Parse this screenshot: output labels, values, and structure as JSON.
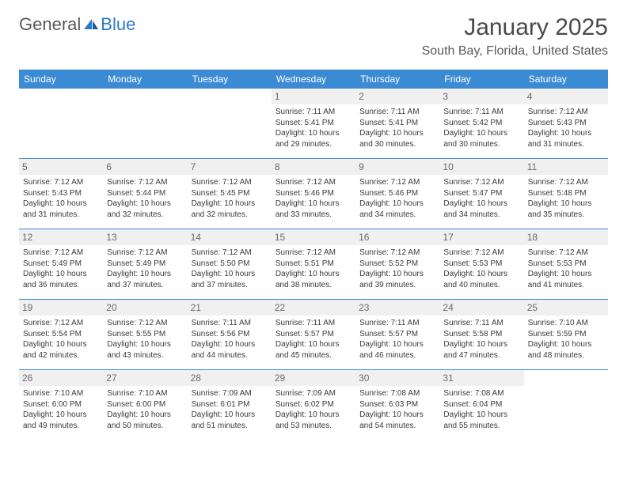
{
  "logo": {
    "text_general": "General",
    "text_blue": "Blue"
  },
  "title": "January 2025",
  "location": "South Bay, Florida, United States",
  "colors": {
    "header_bg": "#3b8bd4",
    "header_text": "#ffffff",
    "day_num_bg": "#f0f0f0",
    "day_num_text": "#6a6a6a",
    "body_text": "#3a3a3a",
    "row_border": "#3b8bd4",
    "logo_gray": "#5a5a5a",
    "logo_blue": "#2d7bc4"
  },
  "day_names": [
    "Sunday",
    "Monday",
    "Tuesday",
    "Wednesday",
    "Thursday",
    "Friday",
    "Saturday"
  ],
  "weeks": [
    [
      {
        "n": "",
        "lines": []
      },
      {
        "n": "",
        "lines": []
      },
      {
        "n": "",
        "lines": []
      },
      {
        "n": "1",
        "lines": [
          "Sunrise: 7:11 AM",
          "Sunset: 5:41 PM",
          "Daylight: 10 hours",
          "and 29 minutes."
        ]
      },
      {
        "n": "2",
        "lines": [
          "Sunrise: 7:11 AM",
          "Sunset: 5:41 PM",
          "Daylight: 10 hours",
          "and 30 minutes."
        ]
      },
      {
        "n": "3",
        "lines": [
          "Sunrise: 7:11 AM",
          "Sunset: 5:42 PM",
          "Daylight: 10 hours",
          "and 30 minutes."
        ]
      },
      {
        "n": "4",
        "lines": [
          "Sunrise: 7:12 AM",
          "Sunset: 5:43 PM",
          "Daylight: 10 hours",
          "and 31 minutes."
        ]
      }
    ],
    [
      {
        "n": "5",
        "lines": [
          "Sunrise: 7:12 AM",
          "Sunset: 5:43 PM",
          "Daylight: 10 hours",
          "and 31 minutes."
        ]
      },
      {
        "n": "6",
        "lines": [
          "Sunrise: 7:12 AM",
          "Sunset: 5:44 PM",
          "Daylight: 10 hours",
          "and 32 minutes."
        ]
      },
      {
        "n": "7",
        "lines": [
          "Sunrise: 7:12 AM",
          "Sunset: 5:45 PM",
          "Daylight: 10 hours",
          "and 32 minutes."
        ]
      },
      {
        "n": "8",
        "lines": [
          "Sunrise: 7:12 AM",
          "Sunset: 5:46 PM",
          "Daylight: 10 hours",
          "and 33 minutes."
        ]
      },
      {
        "n": "9",
        "lines": [
          "Sunrise: 7:12 AM",
          "Sunset: 5:46 PM",
          "Daylight: 10 hours",
          "and 34 minutes."
        ]
      },
      {
        "n": "10",
        "lines": [
          "Sunrise: 7:12 AM",
          "Sunset: 5:47 PM",
          "Daylight: 10 hours",
          "and 34 minutes."
        ]
      },
      {
        "n": "11",
        "lines": [
          "Sunrise: 7:12 AM",
          "Sunset: 5:48 PM",
          "Daylight: 10 hours",
          "and 35 minutes."
        ]
      }
    ],
    [
      {
        "n": "12",
        "lines": [
          "Sunrise: 7:12 AM",
          "Sunset: 5:49 PM",
          "Daylight: 10 hours",
          "and 36 minutes."
        ]
      },
      {
        "n": "13",
        "lines": [
          "Sunrise: 7:12 AM",
          "Sunset: 5:49 PM",
          "Daylight: 10 hours",
          "and 37 minutes."
        ]
      },
      {
        "n": "14",
        "lines": [
          "Sunrise: 7:12 AM",
          "Sunset: 5:50 PM",
          "Daylight: 10 hours",
          "and 37 minutes."
        ]
      },
      {
        "n": "15",
        "lines": [
          "Sunrise: 7:12 AM",
          "Sunset: 5:51 PM",
          "Daylight: 10 hours",
          "and 38 minutes."
        ]
      },
      {
        "n": "16",
        "lines": [
          "Sunrise: 7:12 AM",
          "Sunset: 5:52 PM",
          "Daylight: 10 hours",
          "and 39 minutes."
        ]
      },
      {
        "n": "17",
        "lines": [
          "Sunrise: 7:12 AM",
          "Sunset: 5:53 PM",
          "Daylight: 10 hours",
          "and 40 minutes."
        ]
      },
      {
        "n": "18",
        "lines": [
          "Sunrise: 7:12 AM",
          "Sunset: 5:53 PM",
          "Daylight: 10 hours",
          "and 41 minutes."
        ]
      }
    ],
    [
      {
        "n": "19",
        "lines": [
          "Sunrise: 7:12 AM",
          "Sunset: 5:54 PM",
          "Daylight: 10 hours",
          "and 42 minutes."
        ]
      },
      {
        "n": "20",
        "lines": [
          "Sunrise: 7:12 AM",
          "Sunset: 5:55 PM",
          "Daylight: 10 hours",
          "and 43 minutes."
        ]
      },
      {
        "n": "21",
        "lines": [
          "Sunrise: 7:11 AM",
          "Sunset: 5:56 PM",
          "Daylight: 10 hours",
          "and 44 minutes."
        ]
      },
      {
        "n": "22",
        "lines": [
          "Sunrise: 7:11 AM",
          "Sunset: 5:57 PM",
          "Daylight: 10 hours",
          "and 45 minutes."
        ]
      },
      {
        "n": "23",
        "lines": [
          "Sunrise: 7:11 AM",
          "Sunset: 5:57 PM",
          "Daylight: 10 hours",
          "and 46 minutes."
        ]
      },
      {
        "n": "24",
        "lines": [
          "Sunrise: 7:11 AM",
          "Sunset: 5:58 PM",
          "Daylight: 10 hours",
          "and 47 minutes."
        ]
      },
      {
        "n": "25",
        "lines": [
          "Sunrise: 7:10 AM",
          "Sunset: 5:59 PM",
          "Daylight: 10 hours",
          "and 48 minutes."
        ]
      }
    ],
    [
      {
        "n": "26",
        "lines": [
          "Sunrise: 7:10 AM",
          "Sunset: 6:00 PM",
          "Daylight: 10 hours",
          "and 49 minutes."
        ]
      },
      {
        "n": "27",
        "lines": [
          "Sunrise: 7:10 AM",
          "Sunset: 6:00 PM",
          "Daylight: 10 hours",
          "and 50 minutes."
        ]
      },
      {
        "n": "28",
        "lines": [
          "Sunrise: 7:09 AM",
          "Sunset: 6:01 PM",
          "Daylight: 10 hours",
          "and 51 minutes."
        ]
      },
      {
        "n": "29",
        "lines": [
          "Sunrise: 7:09 AM",
          "Sunset: 6:02 PM",
          "Daylight: 10 hours",
          "and 53 minutes."
        ]
      },
      {
        "n": "30",
        "lines": [
          "Sunrise: 7:08 AM",
          "Sunset: 6:03 PM",
          "Daylight: 10 hours",
          "and 54 minutes."
        ]
      },
      {
        "n": "31",
        "lines": [
          "Sunrise: 7:08 AM",
          "Sunset: 6:04 PM",
          "Daylight: 10 hours",
          "and 55 minutes."
        ]
      },
      {
        "n": "",
        "lines": []
      }
    ]
  ]
}
